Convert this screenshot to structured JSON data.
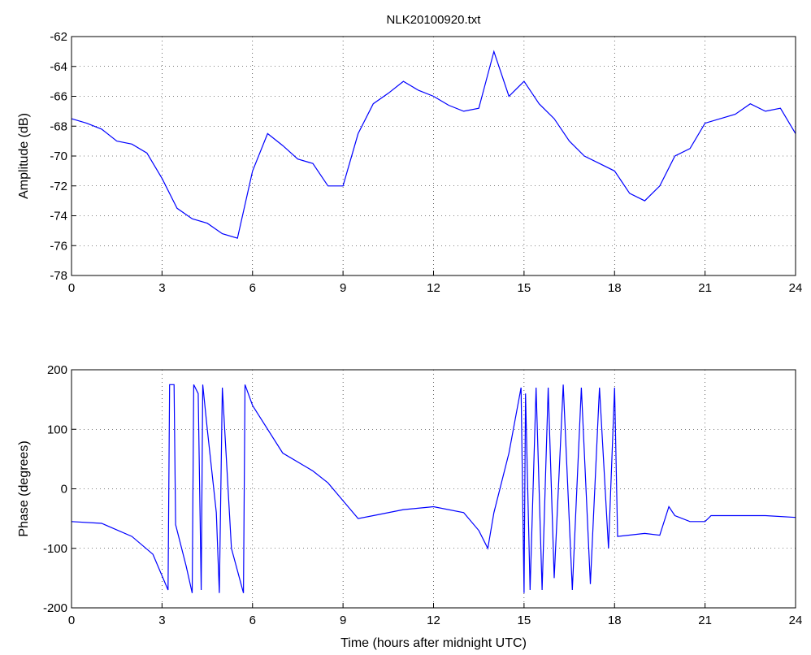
{
  "chart_data": [
    {
      "type": "line",
      "title": "NLK20100920.txt",
      "ylabel": "Amplitude (dB)",
      "x": [
        0,
        0.5,
        1,
        1.5,
        2,
        2.5,
        3,
        3.5,
        4,
        4.5,
        5,
        5.5,
        6,
        6.5,
        7,
        7.5,
        8,
        8.5,
        9,
        9.5,
        10,
        10.5,
        11,
        11.5,
        12,
        12.5,
        13,
        13.5,
        14,
        14.5,
        15,
        15.5,
        16,
        16.5,
        17,
        17.5,
        18,
        18.5,
        19,
        19.5,
        20,
        20.5,
        21,
        21.5,
        22,
        22.5,
        23,
        23.5,
        24
      ],
      "series": [
        {
          "color": "#0000ff",
          "values": [
            -67.5,
            -67.8,
            -68.2,
            -69.0,
            -69.2,
            -69.8,
            -71.5,
            -73.5,
            -74.2,
            -74.5,
            -75.2,
            -75.5,
            -71.0,
            -68.5,
            -69.3,
            -70.2,
            -70.5,
            -72.0,
            -72.0,
            -68.5,
            -66.5,
            -65.8,
            -65.0,
            -65.6,
            -66.0,
            -66.6,
            -67.0,
            -66.8,
            -63.0,
            -66.0,
            -65.0,
            -66.5,
            -67.5,
            -69.0,
            -70.0,
            -70.5,
            -71.0,
            -72.5,
            -73.0,
            -72.0,
            -70.0,
            -69.5,
            -67.8,
            -67.5,
            -67.2,
            -66.5,
            -67.0,
            -66.8,
            -68.5
          ]
        }
      ],
      "xlim": [
        0,
        24
      ],
      "xticks": [
        0,
        3,
        6,
        9,
        12,
        15,
        18,
        21,
        24
      ],
      "ylim": [
        -78,
        -62
      ],
      "yticks": [
        -62,
        -64,
        -66,
        -68,
        -70,
        -72,
        -74,
        -76,
        -78
      ],
      "grid": true
    },
    {
      "type": "line",
      "xlabel": "Time (hours after midnight UTC)",
      "ylabel": "Phase (degrees)",
      "x": [
        0,
        1,
        2,
        2.7,
        3.2,
        3.25,
        3.4,
        3.45,
        3.8,
        4.0,
        4.05,
        4.2,
        4.3,
        4.35,
        4.5,
        4.8,
        4.9,
        5.0,
        5.3,
        5.7,
        5.75,
        6,
        7,
        8,
        8.5,
        9,
        9.5,
        10,
        11,
        12,
        13,
        13.5,
        13.8,
        14,
        14.5,
        14.9,
        15,
        15.05,
        15.2,
        15.4,
        15.6,
        15.8,
        16,
        16.3,
        16.6,
        16.9,
        17.2,
        17.5,
        17.8,
        18,
        18.1,
        19,
        19.5,
        19.8,
        20,
        20.5,
        21,
        21.2,
        22,
        23,
        24
      ],
      "series": [
        {
          "color": "#0000ff",
          "values": [
            -55,
            -58,
            -80,
            -110,
            -170,
            175,
            175,
            -60,
            -130,
            -175,
            175,
            160,
            -170,
            175,
            100,
            -40,
            -175,
            170,
            -100,
            -175,
            175,
            140,
            60,
            30,
            10,
            -20,
            -50,
            -45,
            -35,
            -30,
            -40,
            -70,
            -100,
            -40,
            60,
            170,
            -175,
            160,
            -170,
            170,
            -170,
            170,
            -150,
            175,
            -170,
            170,
            -160,
            170,
            -100,
            170,
            -80,
            -75,
            -78,
            -30,
            -45,
            -55,
            -55,
            -45,
            -45,
            -45,
            -48
          ]
        }
      ],
      "xlim": [
        0,
        24
      ],
      "xticks": [
        0,
        3,
        6,
        9,
        12,
        15,
        18,
        21,
        24
      ],
      "ylim": [
        -200,
        200
      ],
      "yticks": [
        200,
        100,
        0,
        -100,
        -200
      ],
      "grid": true
    }
  ]
}
